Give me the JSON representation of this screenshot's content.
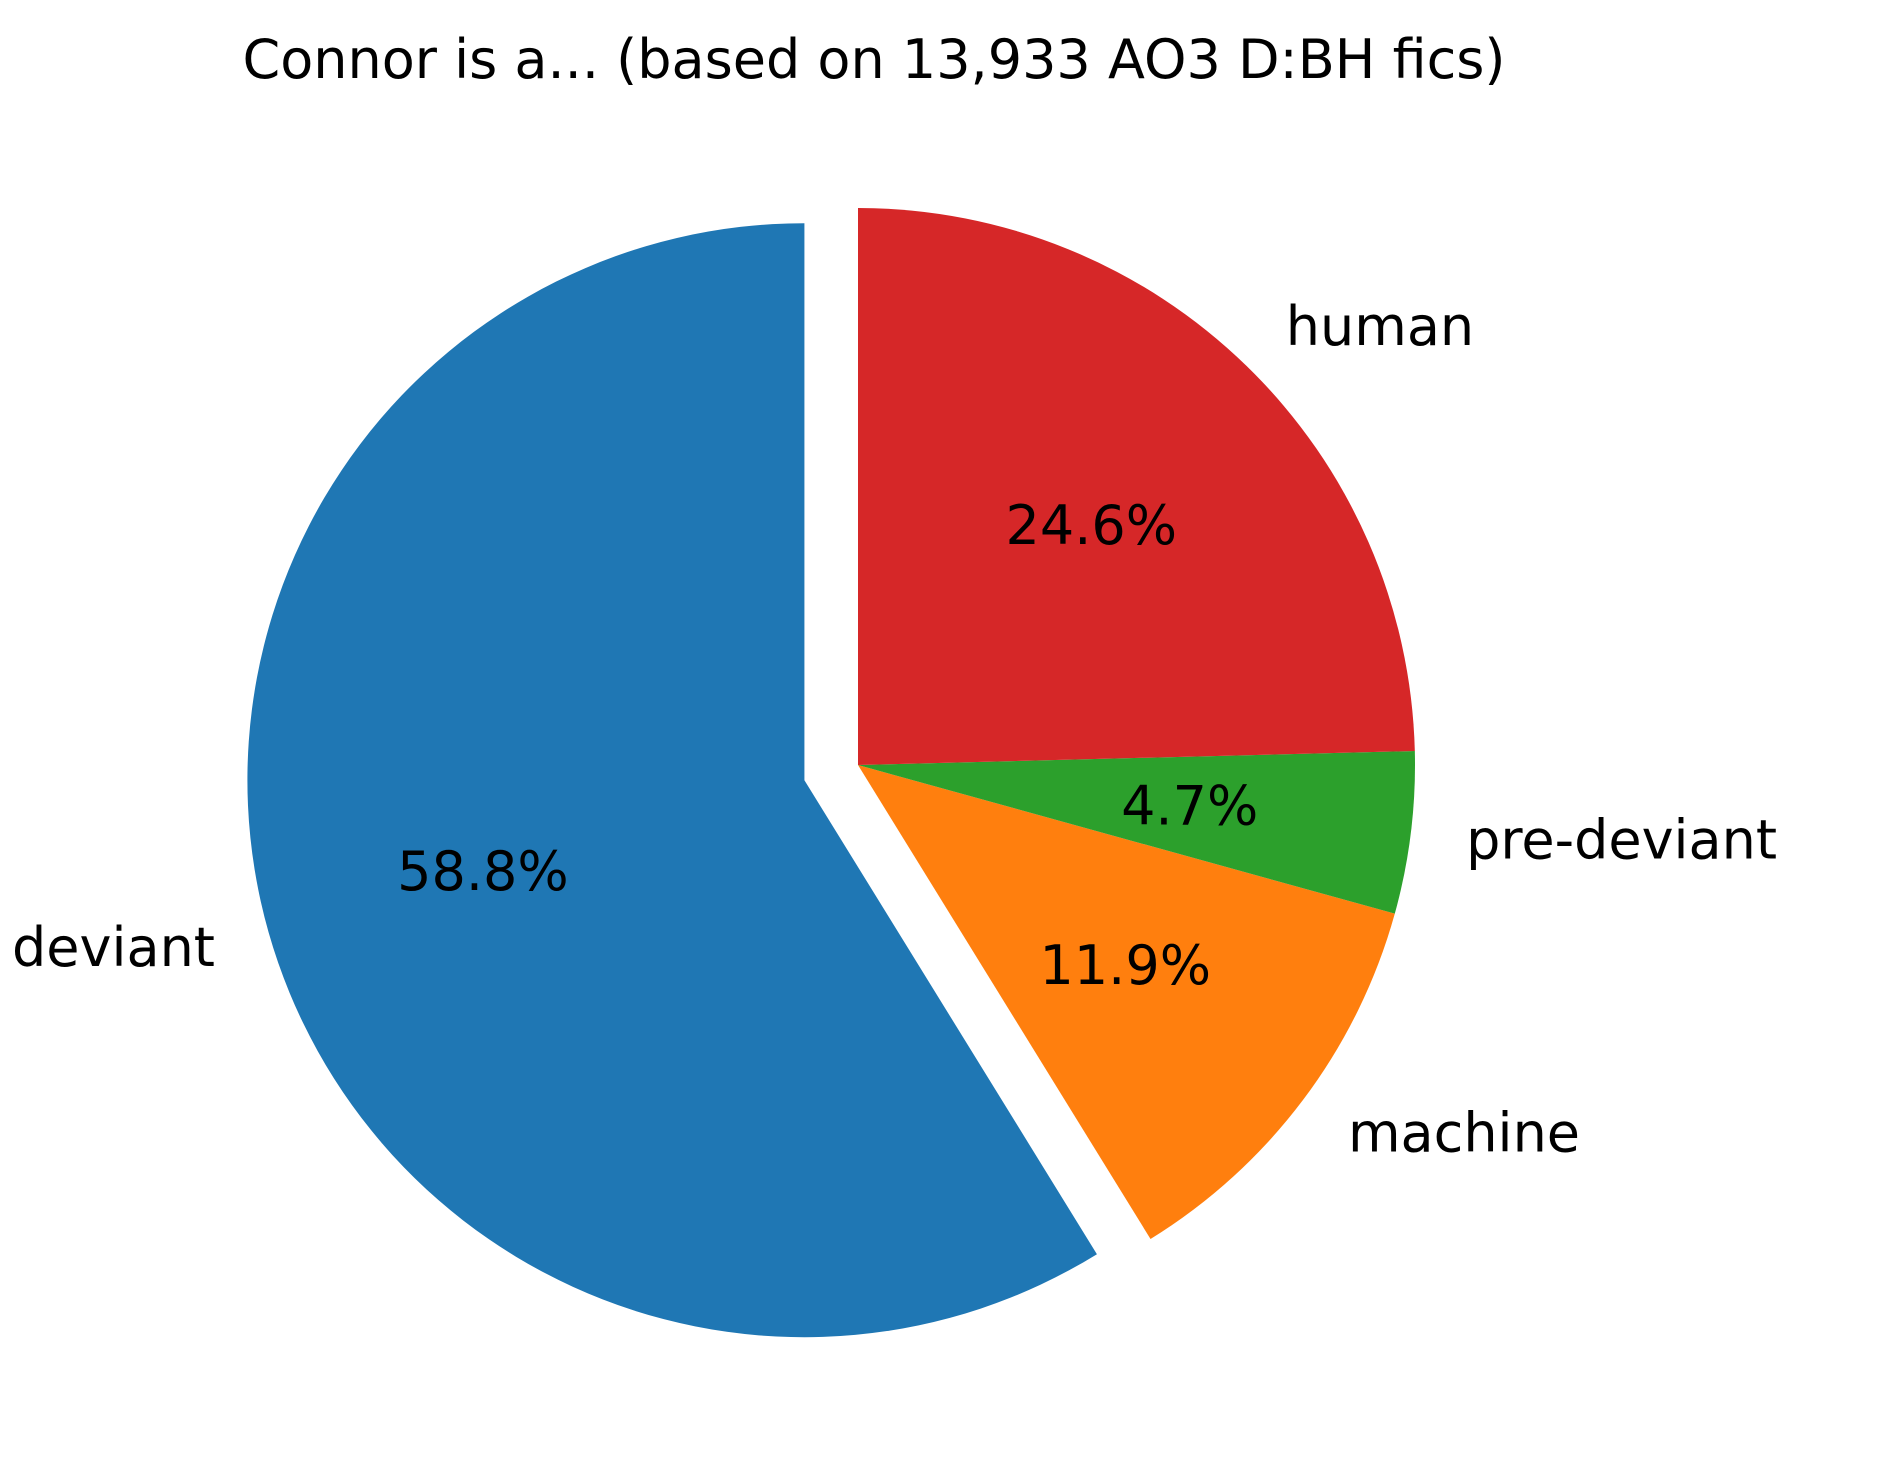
{
  "chart_data": {
    "type": "pie",
    "title": "Connor is a... (based on 13,933 AO3 D:BH fics)",
    "slices": [
      {
        "label": "deviant",
        "value": 58.8,
        "pct_text": "58.8%",
        "color": "#1f77b4",
        "exploded": true
      },
      {
        "label": "machine",
        "value": 11.9,
        "pct_text": "11.9%",
        "color": "#ff7f0e",
        "exploded": false
      },
      {
        "label": "pre-deviant",
        "value": 4.7,
        "pct_text": "4.7%",
        "color": "#2ca02c",
        "exploded": false
      },
      {
        "label": "human",
        "value": 24.6,
        "pct_text": "24.6%",
        "color": "#d62728",
        "exploded": false
      }
    ],
    "start_angle_deg": 90,
    "direction": "counterclockwise",
    "legend": "none"
  }
}
